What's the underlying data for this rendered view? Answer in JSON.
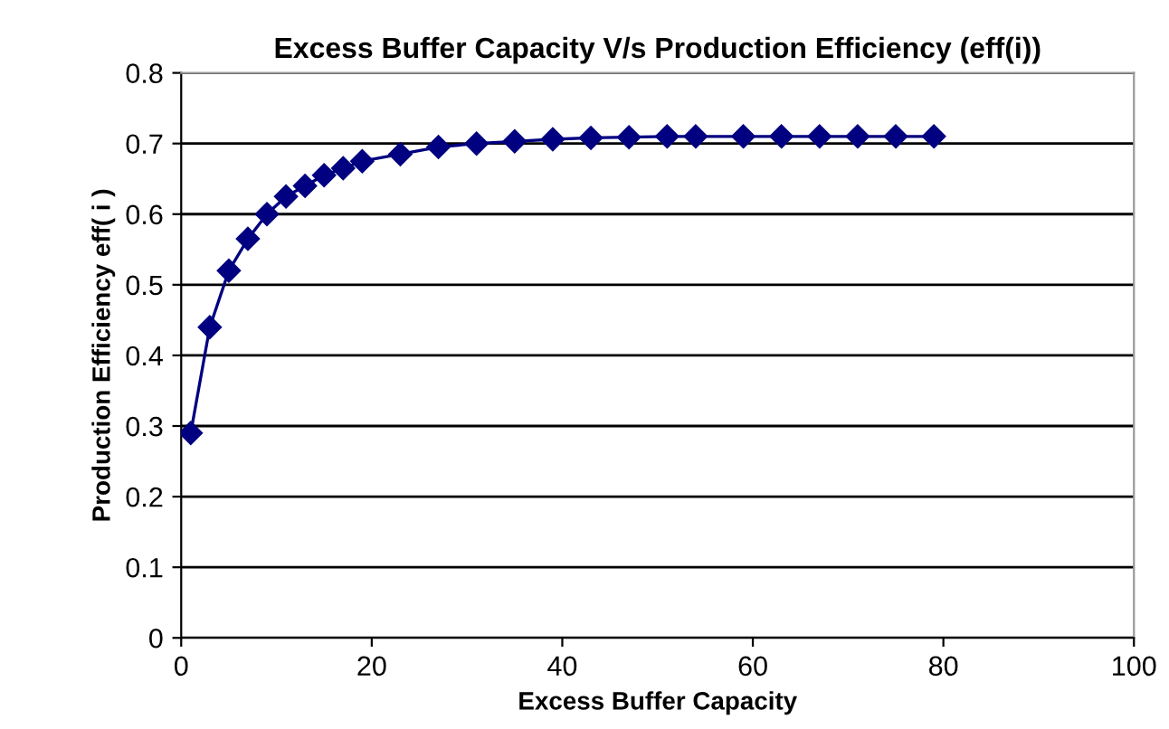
{
  "chart_data": {
    "type": "line",
    "title": "Excess Buffer Capacity V/s Production Efficiency (eff(i))",
    "xlabel": "Excess Buffer Capacity",
    "ylabel": "Production Efficiency eff( i )",
    "series": [
      {
        "color": "#000080",
        "x": [
          1,
          3,
          5,
          7,
          9,
          11,
          13,
          15,
          17,
          19,
          23,
          27,
          31,
          35,
          39,
          43,
          47,
          51,
          54,
          59,
          63,
          67,
          71,
          75,
          79
        ],
        "values": [
          0.29,
          0.44,
          0.52,
          0.565,
          0.6,
          0.625,
          0.64,
          0.655,
          0.665,
          0.675,
          0.685,
          0.695,
          0.7,
          0.703,
          0.706,
          0.708,
          0.709,
          0.71,
          0.71,
          0.71,
          0.71,
          0.71,
          0.71,
          0.71,
          0.71
        ]
      }
    ],
    "xlim": [
      0,
      100
    ],
    "xticks": [
      0,
      20,
      40,
      60,
      80,
      100
    ],
    "ylim": [
      0,
      0.8
    ],
    "yticks": [
      0,
      0.1,
      0.2,
      0.3,
      0.4,
      0.5,
      0.6,
      0.7,
      0.8
    ],
    "grid": "y",
    "marker": "diamond",
    "line_style": "solid"
  }
}
